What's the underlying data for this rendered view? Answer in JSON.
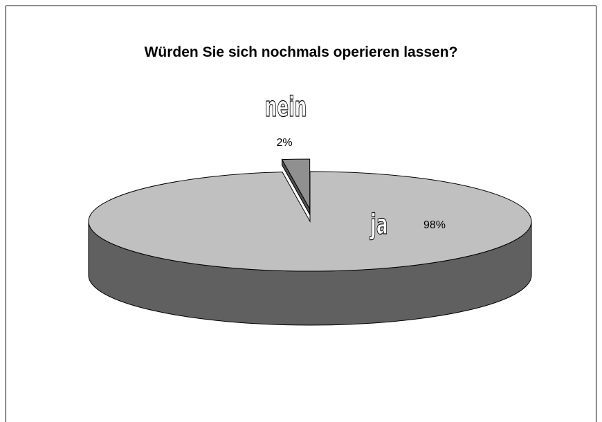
{
  "chart_data": {
    "type": "pie",
    "title": "Würden Sie sich nochmals operieren lassen?",
    "categories": [
      "ja",
      "nein"
    ],
    "values": [
      98,
      2
    ],
    "value_labels": [
      "98%",
      "2%"
    ],
    "colors": [
      "#c0c0c0",
      "#909090"
    ],
    "exploded": [
      false,
      true
    ]
  }
}
